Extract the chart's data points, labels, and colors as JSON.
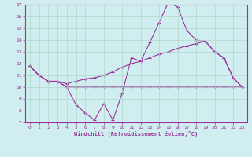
{
  "xlabel": "Windchill (Refroidissement éolien,°C)",
  "background_color": "#d0eef0",
  "grid_color": "#b0d8cc",
  "line_color": "#993399",
  "x": [
    0,
    1,
    2,
    3,
    4,
    5,
    6,
    7,
    8,
    9,
    10,
    11,
    12,
    13,
    14,
    15,
    16,
    17,
    18,
    19,
    20,
    21,
    22,
    23
  ],
  "line1": [
    11.8,
    11.0,
    10.5,
    10.5,
    10.0,
    8.5,
    7.8,
    7.2,
    8.6,
    7.2,
    9.5,
    12.5,
    12.2,
    13.8,
    15.5,
    17.2,
    16.8,
    14.8,
    14.0,
    13.9,
    13.0,
    12.5,
    10.8,
    10.0
  ],
  "line2": [
    11.8,
    11.0,
    10.5,
    10.5,
    10.0,
    10.0,
    10.0,
    10.0,
    10.0,
    10.0,
    10.0,
    10.0,
    10.0,
    10.0,
    10.0,
    10.0,
    10.0,
    10.0,
    10.0,
    10.0,
    10.0,
    10.0,
    10.0,
    10.0
  ],
  "line3": [
    11.8,
    11.0,
    10.5,
    10.5,
    10.3,
    10.5,
    10.7,
    10.8,
    11.0,
    11.3,
    11.7,
    12.0,
    12.2,
    12.5,
    12.8,
    13.0,
    13.3,
    13.5,
    13.7,
    13.9,
    13.0,
    12.5,
    10.8,
    10.0
  ],
  "ylim": [
    7,
    17
  ],
  "xlim": [
    -0.5,
    23.5
  ],
  "yticks": [
    7,
    8,
    9,
    10,
    11,
    12,
    13,
    14,
    15,
    16,
    17
  ],
  "xticks": [
    0,
    1,
    2,
    3,
    4,
    5,
    6,
    7,
    8,
    9,
    10,
    11,
    12,
    13,
    14,
    15,
    16,
    17,
    18,
    19,
    20,
    21,
    22,
    23
  ]
}
